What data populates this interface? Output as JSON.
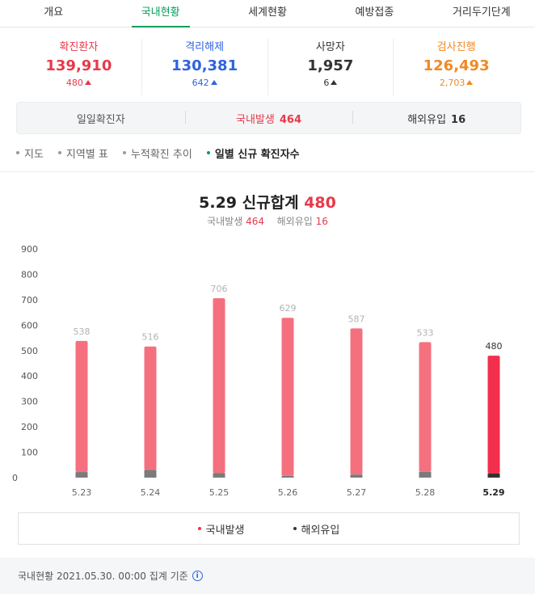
{
  "tabs": [
    {
      "label": "개요",
      "active": false
    },
    {
      "label": "국내현황",
      "active": true
    },
    {
      "label": "세계현황",
      "active": false
    },
    {
      "label": "예방접종",
      "active": false
    },
    {
      "label": "거리두기단계",
      "active": false
    }
  ],
  "stats": [
    {
      "label": "확진환자",
      "value": "139,910",
      "delta": "480",
      "color": "#e8394a"
    },
    {
      "label": "격리해제",
      "value": "130,381",
      "delta": "642",
      "color": "#2e62e0"
    },
    {
      "label": "사망자",
      "value": "1,957",
      "delta": "6",
      "color": "#333333"
    },
    {
      "label": "검사진행",
      "value": "126,493",
      "delta": "2,703",
      "color": "#f08a24"
    }
  ],
  "breakdown": {
    "daily_label": "일일확진자",
    "domestic_label": "국내발생",
    "domestic_value": "464",
    "overseas_label": "해외유입",
    "overseas_value": "16"
  },
  "subnav": [
    {
      "label": "지도",
      "active": false
    },
    {
      "label": "지역별 표",
      "active": false
    },
    {
      "label": "누적확진 추이",
      "active": false
    },
    {
      "label": "일별 신규 확진자수",
      "active": true
    }
  ],
  "chart_header": {
    "title_prefix": "5.29 신규합계",
    "title_value": "480",
    "sub_domestic_label": "국내발생",
    "sub_domestic_value": "464",
    "sub_overseas_label": "해외유입",
    "sub_overseas_value": "16"
  },
  "colors": {
    "domestic": "#f5707f",
    "domestic_latest": "#f2304d",
    "overseas": "#7b7b7b",
    "overseas_latest": "#333333",
    "accent_green": "#00a05a"
  },
  "chart_data": {
    "type": "bar",
    "stacked": true,
    "categories": [
      "5.23",
      "5.24",
      "5.25",
      "5.26",
      "5.27",
      "5.28",
      "5.29"
    ],
    "series": [
      {
        "name": "국내발생",
        "values": [
          516,
          486,
          688,
          622,
          575,
          510,
          464
        ]
      },
      {
        "name": "해외유입",
        "values": [
          22,
          30,
          18,
          7,
          12,
          23,
          16
        ]
      }
    ],
    "totals": [
      "538",
      "516",
      "706",
      "629",
      "587",
      "533",
      "480"
    ],
    "yticks": [
      "0",
      "100",
      "200",
      "300",
      "400",
      "500",
      "600",
      "700",
      "800",
      "900"
    ],
    "ylim": [
      0,
      900
    ],
    "grid": false,
    "legend_position": "bottom"
  },
  "footer": {
    "text": "국내현황 2021.05.30. 00:00 집계 기준"
  }
}
